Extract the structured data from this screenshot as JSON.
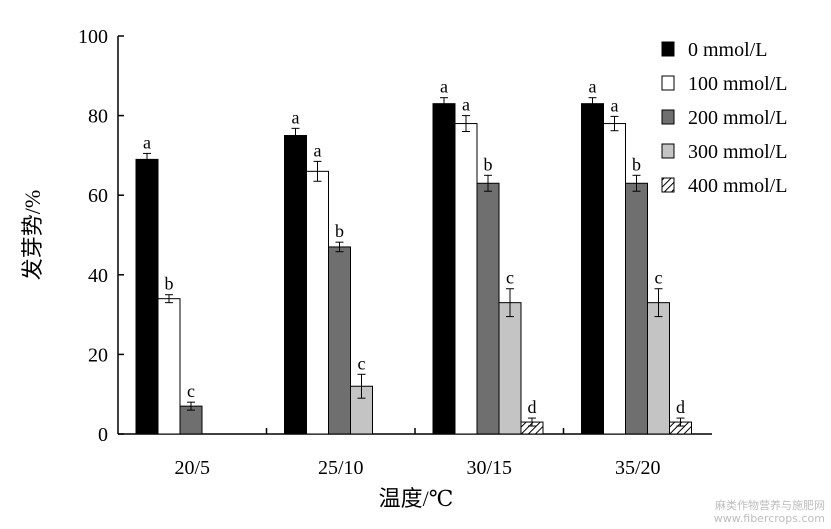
{
  "chart_data": {
    "type": "bar",
    "xlabel": "温度/℃",
    "ylabel": "发芽势/%",
    "ylim": [
      0,
      100
    ],
    "yticks": [
      0,
      20,
      40,
      60,
      80,
      100
    ],
    "categories": [
      "20/5",
      "25/10",
      "30/15",
      "35/20"
    ],
    "series": [
      {
        "name": "0 mmol/L",
        "fill": "#000000",
        "pattern": "none",
        "values": [
          69,
          75,
          83,
          83
        ],
        "errors": [
          1.5,
          1.8,
          1.5,
          1.5
        ],
        "labels": [
          "a",
          "a",
          "a",
          "a"
        ]
      },
      {
        "name": "100 mmol/L",
        "fill": "#ffffff",
        "pattern": "none",
        "values": [
          34,
          66,
          78,
          78
        ],
        "errors": [
          1.0,
          2.5,
          2.0,
          1.8
        ],
        "labels": [
          "b",
          "a",
          "a",
          "a"
        ]
      },
      {
        "name": "200 mmol/L",
        "fill": "#6f6f6f",
        "pattern": "none",
        "values": [
          7,
          47,
          63,
          63
        ],
        "errors": [
          1.0,
          1.2,
          2.0,
          2.0
        ],
        "labels": [
          "c",
          "b",
          "b",
          "b"
        ]
      },
      {
        "name": "300 mmol/L",
        "fill": "#c4c4c4",
        "pattern": "none",
        "values": [
          0,
          12,
          33,
          33
        ],
        "errors": [
          0,
          3.0,
          3.5,
          3.5
        ],
        "labels": [
          "",
          "c",
          "c",
          "c"
        ]
      },
      {
        "name": "400 mmol/L",
        "fill": "#ffffff",
        "pattern": "hatch",
        "values": [
          0,
          0,
          3,
          3
        ],
        "errors": [
          0,
          0,
          1.0,
          1.0
        ],
        "labels": [
          "",
          "",
          "d",
          "d"
        ]
      }
    ],
    "legend_position": "top-right",
    "grid": false
  },
  "watermark": {
    "line1": "麻类作物营养与施肥网",
    "line2": "www.fibercrops.com"
  }
}
